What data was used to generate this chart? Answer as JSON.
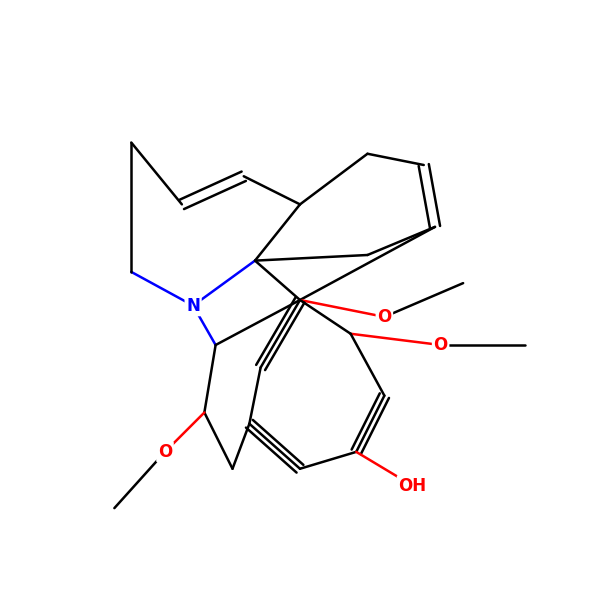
{
  "figsize": [
    6.0,
    6.0
  ],
  "dpi": 100,
  "background_color": "#ffffff",
  "black": "#000000",
  "blue": "#0000ff",
  "red": "#ff0000",
  "lw": 1.8,
  "atoms": {
    "N": {
      "color": "#0000ff",
      "fontsize": 13,
      "fontweight": "bold"
    },
    "O": {
      "color": "#ff0000",
      "fontsize": 13,
      "fontweight": "bold"
    },
    "OH": {
      "color": "#ff0000",
      "fontsize": 13,
      "fontweight": "bold"
    }
  }
}
